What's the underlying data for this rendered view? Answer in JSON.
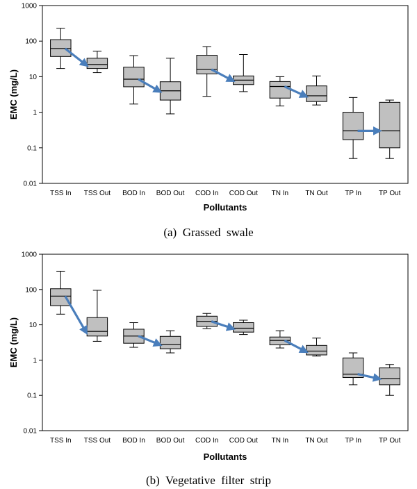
{
  "chart_data": [
    {
      "type": "boxplot",
      "caption": "(a)  Grassed  swale",
      "xlabel": "Pollutants",
      "ylabel": "EMC (mg/L)",
      "yscale": "log",
      "ylim": [
        0.01,
        1000
      ],
      "yticks": [
        "0.01",
        "0.1",
        "1",
        "10",
        "100",
        "1000"
      ],
      "categories": [
        "TSS In",
        "TSS Out",
        "BOD In",
        "BOD Out",
        "COD In",
        "COD Out",
        "TN In",
        "TN Out",
        "TP In",
        "TP Out"
      ],
      "boxes": [
        {
          "min": 17,
          "q1": 37,
          "median": 62,
          "q3": 110,
          "max": 230
        },
        {
          "min": 13,
          "q1": 17,
          "median": 22,
          "q3": 33,
          "max": 52
        },
        {
          "min": 1.7,
          "q1": 5.2,
          "median": 8.5,
          "q3": 18.5,
          "max": 39
        },
        {
          "min": 0.9,
          "q1": 2.2,
          "median": 4.0,
          "q3": 7.2,
          "max": 33
        },
        {
          "min": 2.8,
          "q1": 12,
          "median": 16,
          "q3": 40,
          "max": 70
        },
        {
          "min": 3.8,
          "q1": 6.0,
          "median": 8.0,
          "q3": 10.5,
          "max": 42
        },
        {
          "min": 1.5,
          "q1": 2.5,
          "median": 5.3,
          "q3": 7.3,
          "max": 10
        },
        {
          "min": 1.6,
          "q1": 2.0,
          "median": 2.9,
          "q3": 5.5,
          "max": 10.5
        },
        {
          "min": 0.05,
          "q1": 0.17,
          "median": 0.3,
          "q3": 1.0,
          "max": 2.6
        },
        {
          "min": 0.05,
          "q1": 0.1,
          "median": 0.3,
          "q3": 1.9,
          "max": 2.2
        }
      ],
      "arrows": [
        [
          0,
          1
        ],
        [
          2,
          3
        ],
        [
          4,
          5
        ],
        [
          6,
          7
        ],
        [
          8,
          9
        ]
      ],
      "arrow_color": "#4a7ebb",
      "box_fill": "#c0c0c0"
    },
    {
      "type": "boxplot",
      "caption": "(b)  Vegetative  filter  strip",
      "xlabel": "Pollutants",
      "ylabel": "EMC (mg/L)",
      "yscale": "log",
      "ylim": [
        0.01,
        1000
      ],
      "yticks": [
        "0.01",
        "0.1",
        "1",
        "10",
        "100",
        "1000"
      ],
      "categories": [
        "TSS In",
        "TSS Out",
        "BOD In",
        "BOD Out",
        "COD In",
        "COD Out",
        "TN In",
        "TN Out",
        "TP In",
        "TP Out"
      ],
      "boxes": [
        {
          "min": 20,
          "q1": 35,
          "median": 65,
          "q3": 105,
          "max": 330
        },
        {
          "min": 3.4,
          "q1": 4.8,
          "median": 6.5,
          "q3": 16,
          "max": 95
        },
        {
          "min": 2.3,
          "q1": 3.0,
          "median": 4.8,
          "q3": 7.5,
          "max": 11.5
        },
        {
          "min": 1.6,
          "q1": 2.1,
          "median": 2.8,
          "q3": 4.7,
          "max": 6.8
        },
        {
          "min": 7.8,
          "q1": 9.0,
          "median": 12.5,
          "q3": 17.5,
          "max": 21
        },
        {
          "min": 5.3,
          "q1": 6.2,
          "median": 8.0,
          "q3": 11.5,
          "max": 13.5
        },
        {
          "min": 2.2,
          "q1": 2.7,
          "median": 3.6,
          "q3": 4.5,
          "max": 6.8
        },
        {
          "min": 1.3,
          "q1": 1.4,
          "median": 1.8,
          "q3": 2.6,
          "max": 4.2
        },
        {
          "min": 0.2,
          "q1": 0.32,
          "median": 0.4,
          "q3": 1.15,
          "max": 1.6
        },
        {
          "min": 0.1,
          "q1": 0.2,
          "median": 0.3,
          "q3": 0.6,
          "max": 0.75
        }
      ],
      "arrows": [
        [
          0,
          1
        ],
        [
          2,
          3
        ],
        [
          4,
          5
        ],
        [
          6,
          7
        ],
        [
          8,
          9
        ]
      ],
      "arrow_color": "#4a7ebb",
      "box_fill": "#c0c0c0"
    }
  ]
}
